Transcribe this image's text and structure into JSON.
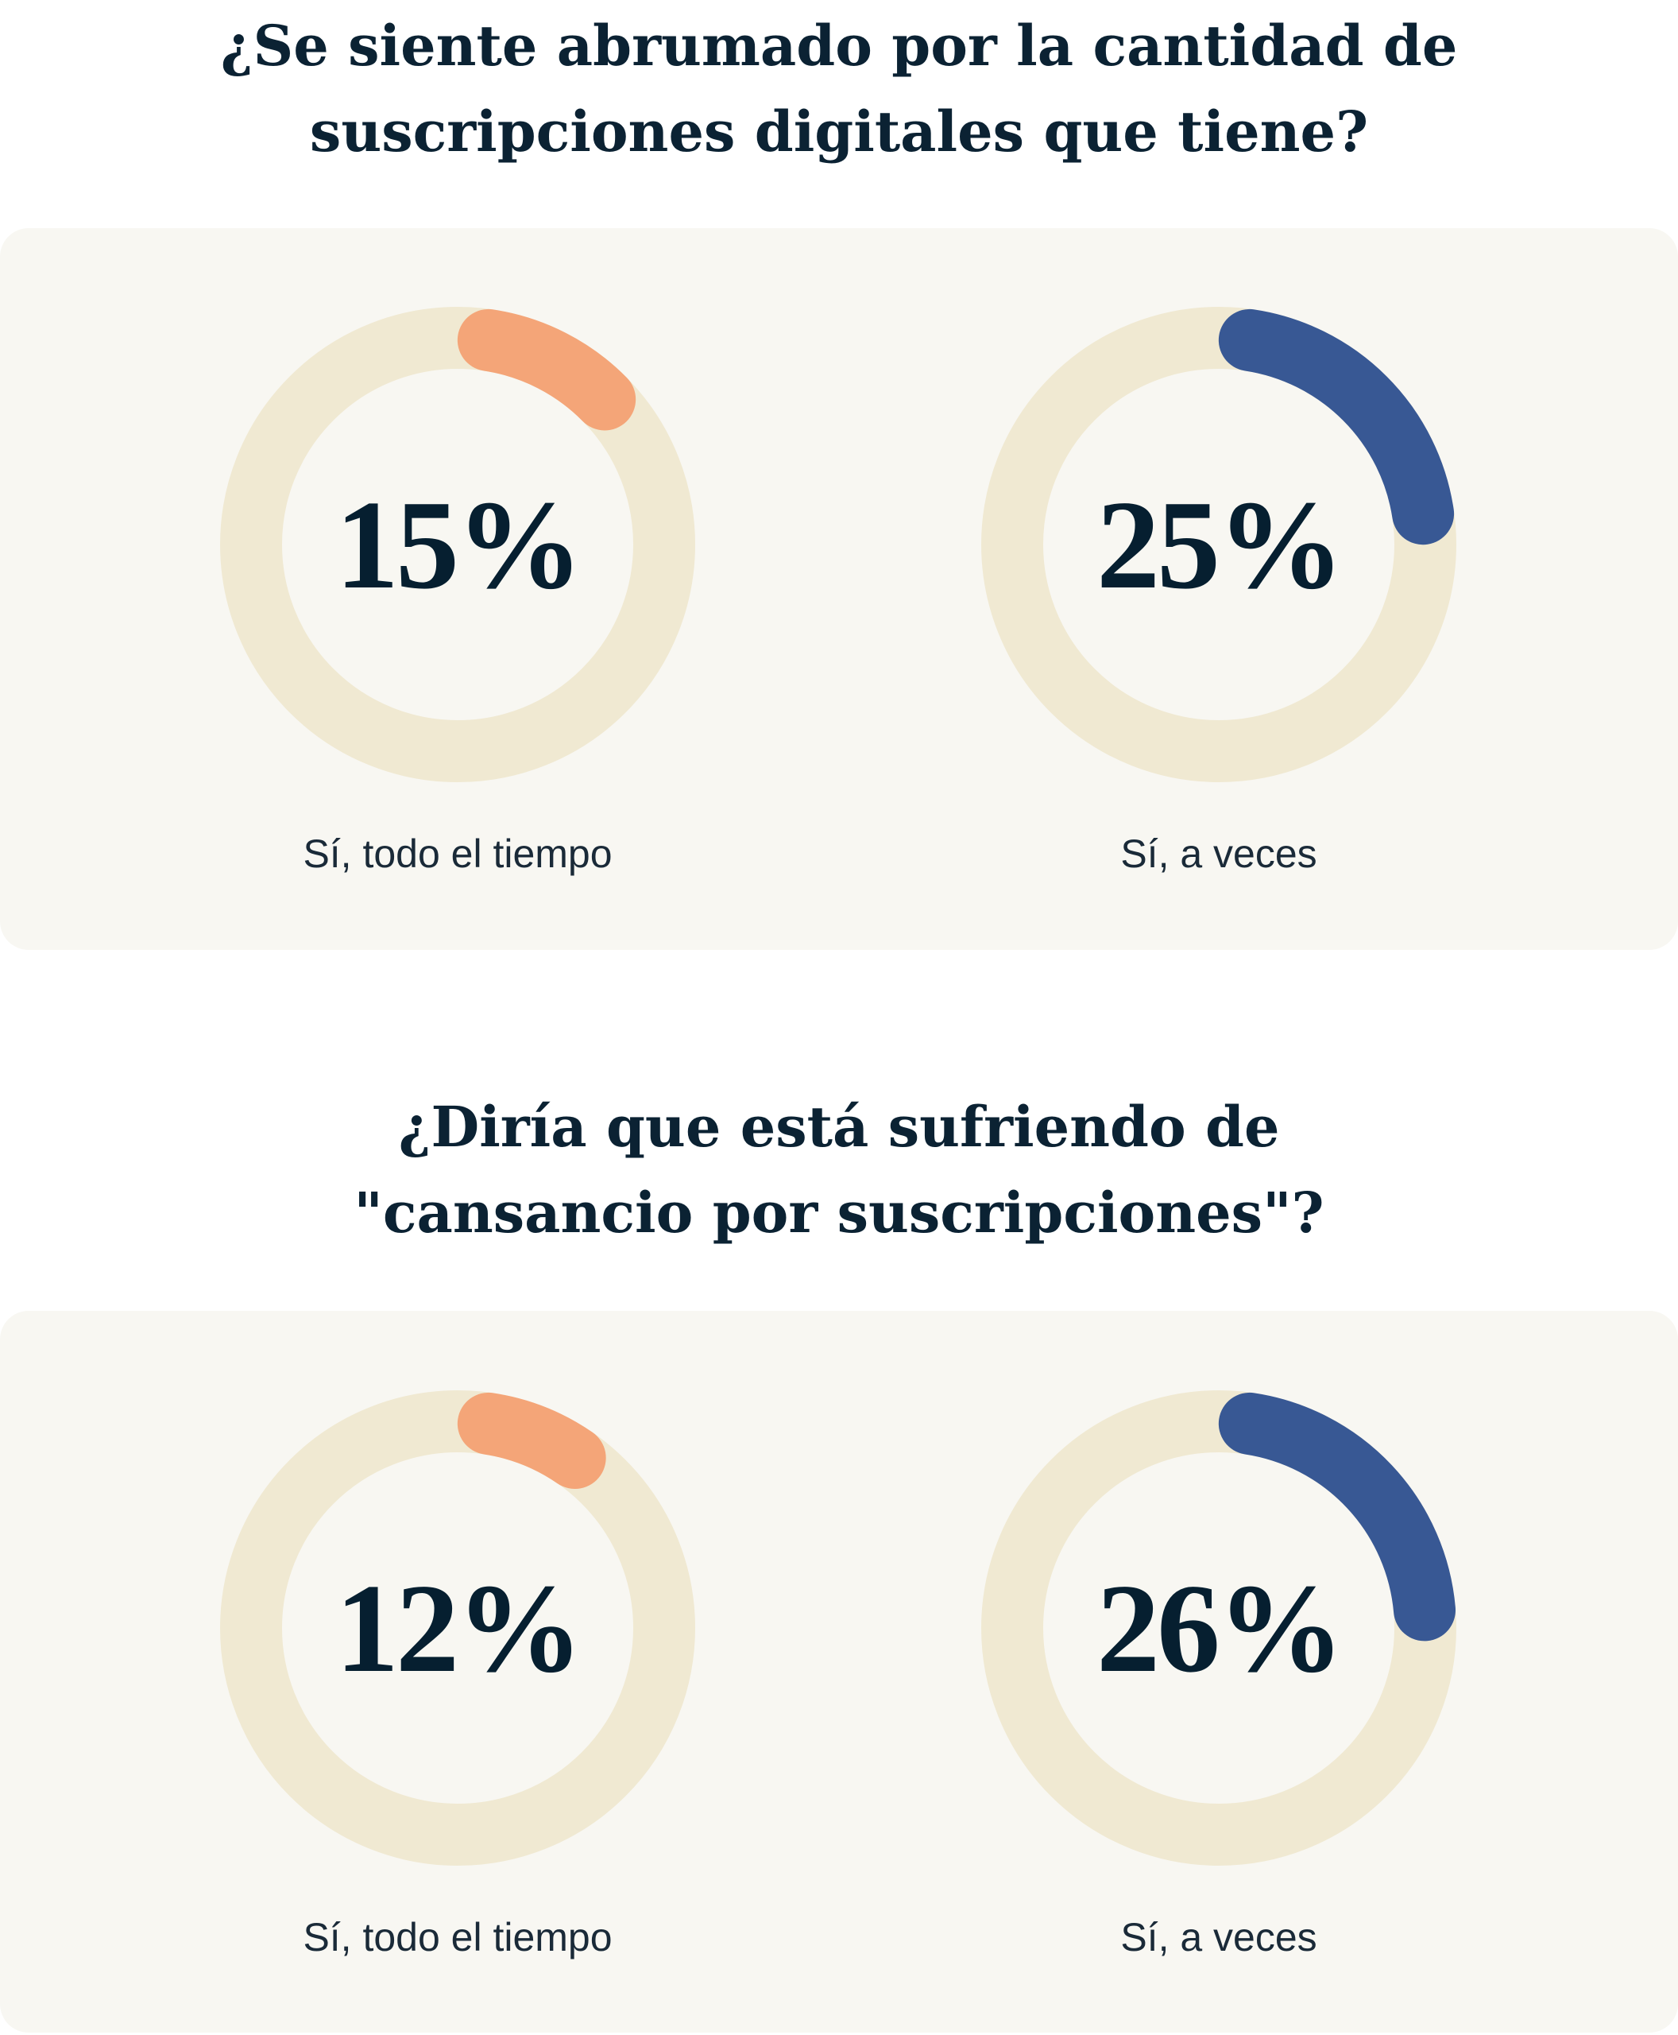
{
  "colors": {
    "track": "#f0e9d2",
    "orange": "#f4a578",
    "blue": "#385894",
    "text": "#061f30"
  },
  "chart_data": [
    {
      "type": "pie",
      "variant": "donut",
      "title": "¿Se siente abrumado por la cantidad de suscripciones digitales que tiene?",
      "items": [
        {
          "label": "Sí, todo el tiempo",
          "value": 15,
          "display": "15%",
          "color": "#f4a578"
        },
        {
          "label": "Sí, a veces",
          "value": 25,
          "display": "25%",
          "color": "#385894"
        }
      ]
    },
    {
      "type": "pie",
      "variant": "donut",
      "title": "¿Diría que está sufriendo de \"cansancio por suscripciones\"?",
      "items": [
        {
          "label": "Sí, todo el tiempo",
          "value": 12,
          "display": "12%",
          "color": "#f4a578"
        },
        {
          "label": "Sí, a veces",
          "value": 26,
          "display": "26%",
          "color": "#385894"
        }
      ]
    }
  ],
  "titles": [
    [
      "¿Se siente abrumado por la cantidad de",
      "suscripciones digitales que tiene?"
    ],
    [
      "¿Diría que está sufriendo de",
      "\"cansancio por suscripciones\"?"
    ]
  ]
}
